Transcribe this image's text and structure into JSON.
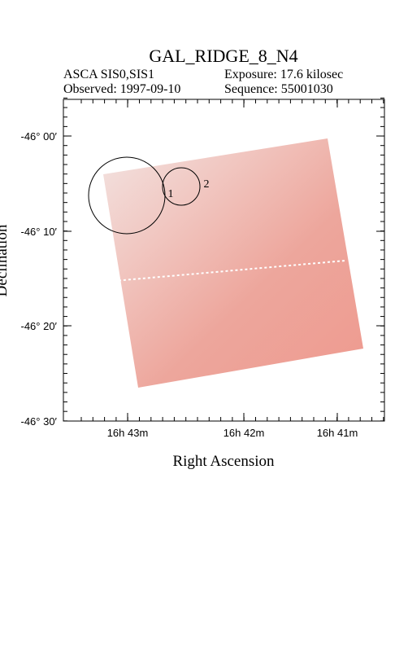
{
  "header": {
    "title": "GAL_RIDGE_8_N4",
    "instrument": "ASCA SIS0,SIS1",
    "exposure": "Exposure: 17.6 kilosec",
    "observed": "Observed: 1997-09-10",
    "sequence": "Sequence: 55001030"
  },
  "axes": {
    "x_label": "Right Ascension",
    "y_label": "Declination",
    "dec_ticks": [
      "-46° 00′",
      "-46° 10′",
      "-46° 20′",
      "-46° 30′"
    ],
    "ra_ticks": [
      "16h 43m",
      "16h 42m",
      "16h 41m"
    ]
  },
  "sources": [
    {
      "label": "1"
    },
    {
      "label": "2"
    }
  ]
}
